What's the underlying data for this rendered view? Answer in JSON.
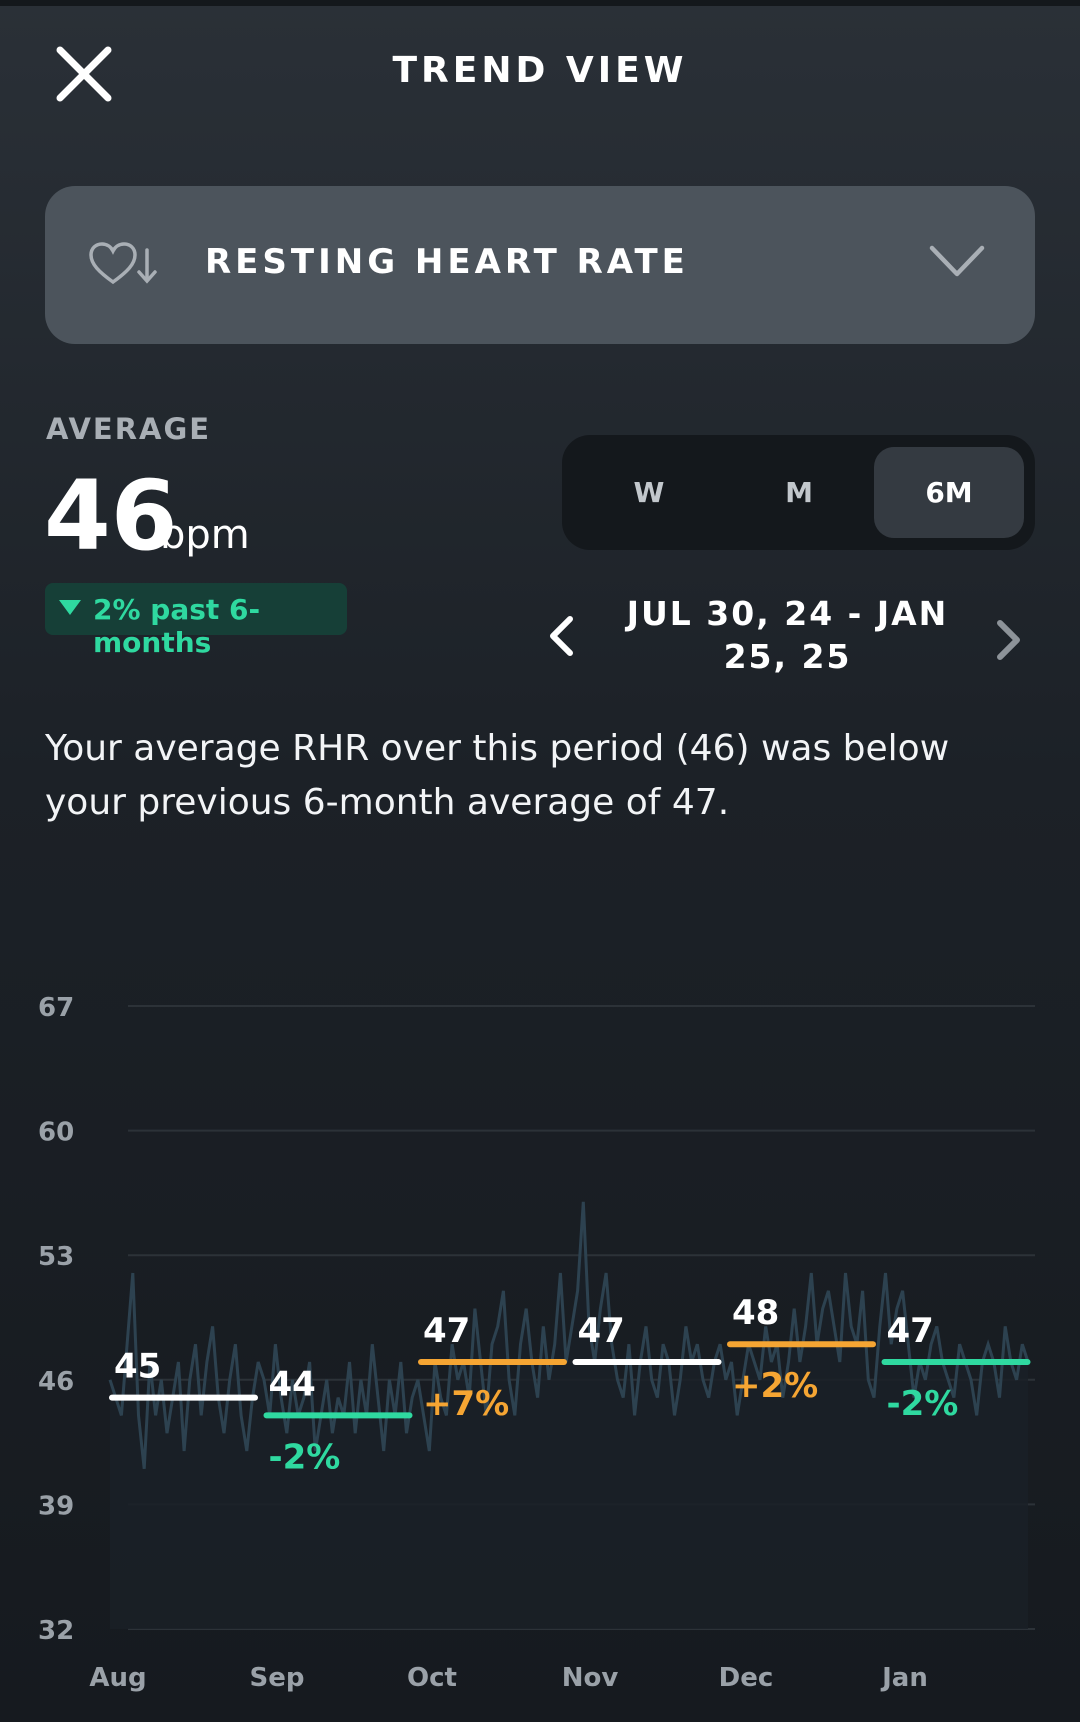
{
  "header": {
    "title": "TREND VIEW",
    "close_icon": "close-icon"
  },
  "metric_selector": {
    "label": "RESTING HEART RATE",
    "icon": "heart-down-icon",
    "chevron": "chevron-down-icon"
  },
  "summary_stats": {
    "average_label": "AVERAGE",
    "average_value": "46",
    "unit": "bpm",
    "change_text": "2% past 6-months",
    "change_direction": "down"
  },
  "period_toggle": {
    "options": [
      "W",
      "M",
      "6M"
    ],
    "selected": "6M"
  },
  "date_range": {
    "text": "JUL 30, 24 - JAN 25, 25"
  },
  "summary_text": "Your average RHR over this period (46) was below your previous 6-month average of 47.",
  "colors": {
    "accent_green": "#2fd9a0",
    "accent_orange": "#f5a533",
    "neutral_white": "#ffffff",
    "background": "#1c2127"
  },
  "chart_data": {
    "type": "line",
    "ylim": [
      32,
      67
    ],
    "yticks": [
      "67",
      "60",
      "53",
      "46",
      "39",
      "32"
    ],
    "x_labels": [
      "Aug",
      "Sep",
      "Oct",
      "Nov",
      "Dec",
      "Jan"
    ],
    "grid": true,
    "monthly": [
      {
        "month": "Aug",
        "avg": 45,
        "label": "45",
        "change": "",
        "color": "#ffffff"
      },
      {
        "month": "Sep",
        "avg": 44,
        "label": "44",
        "change": "-2%",
        "color": "#2fd9a0"
      },
      {
        "month": "Oct",
        "avg": 47,
        "label": "47",
        "change": "+7%",
        "color": "#f5a533"
      },
      {
        "month": "Nov",
        "avg": 47,
        "label": "47",
        "change": "",
        "color": "#ffffff"
      },
      {
        "month": "Dec",
        "avg": 48,
        "label": "48",
        "change": "+2%",
        "color": "#f5a533"
      },
      {
        "month": "Jan",
        "avg": 47,
        "label": "47",
        "change": "-2%",
        "color": "#2fd9a0"
      }
    ],
    "daily_values": [
      46,
      45,
      44,
      48,
      52,
      44,
      41,
      47,
      44,
      46,
      43,
      45,
      47,
      42,
      46,
      48,
      44,
      47,
      49,
      45,
      43,
      46,
      48,
      44,
      42,
      45,
      47,
      46,
      44,
      48,
      45,
      43,
      46,
      44,
      45,
      47,
      42,
      44,
      46,
      43,
      45,
      44,
      47,
      43,
      46,
      44,
      48,
      45,
      42,
      46,
      44,
      47,
      43,
      45,
      46,
      44,
      42,
      47,
      45,
      44,
      48,
      46,
      47,
      45,
      50,
      47,
      44,
      48,
      49,
      51,
      46,
      44,
      48,
      50,
      47,
      45,
      49,
      46,
      48,
      52,
      47,
      49,
      51,
      56,
      49,
      47,
      50,
      52,
      48,
      46,
      45,
      48,
      44,
      47,
      49,
      46,
      45,
      48,
      47,
      44,
      46,
      49,
      47,
      48,
      46,
      45,
      47,
      48,
      46,
      47,
      44,
      46,
      48,
      47,
      46,
      49,
      47,
      48,
      45,
      47,
      50,
      47,
      49,
      52,
      48,
      50,
      51,
      49,
      47,
      52,
      49,
      48,
      51,
      46,
      45,
      49,
      52,
      48,
      50,
      51,
      48,
      45,
      47,
      46,
      48,
      49,
      47,
      46,
      45,
      48,
      47,
      46,
      44,
      47,
      48,
      47,
      45,
      49,
      47,
      46,
      48,
      47
    ]
  }
}
